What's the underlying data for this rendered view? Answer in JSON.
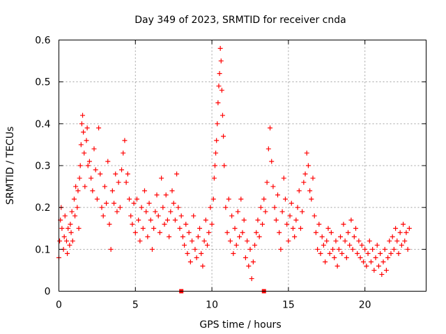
{
  "chart_data": {
    "type": "scatter",
    "title": "Day 349 of 2023, SRMTID for receiver cnda",
    "xlabel": "GPS time / hours",
    "ylabel": "SRMTID / TECUs",
    "xlim": [
      0,
      24
    ],
    "ylim": [
      0,
      0.6
    ],
    "xticks": [
      0,
      5,
      10,
      15,
      20
    ],
    "xtick_labels": [
      "0",
      "5",
      "10",
      "15",
      "20"
    ],
    "yticks": [
      0,
      0.1,
      0.2,
      0.3,
      0.4,
      0.5,
      0.6
    ],
    "ytick_labels": [
      "0",
      "0.1",
      "0.2",
      "0.3",
      "0.4",
      "0.5",
      "0.6"
    ],
    "grid": true,
    "marker": "plus",
    "color": "#ff0000",
    "axis_markers_x": [
      8.0,
      13.4
    ],
    "series": [
      {
        "name": "SRMTID",
        "x": [
          0.0,
          0.05,
          0.1,
          0.15,
          0.2,
          0.3,
          0.35,
          0.4,
          0.5,
          0.55,
          0.6,
          0.7,
          0.75,
          0.8,
          0.85,
          0.9,
          1.0,
          1.05,
          1.1,
          1.2,
          1.25,
          1.3,
          1.35,
          1.4,
          1.45,
          1.5,
          1.55,
          1.6,
          1.65,
          1.7,
          1.8,
          1.85,
          1.9,
          2.0,
          2.1,
          2.2,
          2.3,
          2.4,
          2.5,
          2.6,
          2.7,
          2.8,
          2.9,
          3.0,
          3.1,
          3.2,
          3.3,
          3.4,
          3.5,
          3.6,
          3.7,
          3.8,
          3.9,
          4.0,
          4.1,
          4.2,
          4.3,
          4.4,
          4.5,
          4.6,
          4.7,
          4.8,
          4.9,
          5.0,
          5.1,
          5.2,
          5.3,
          5.4,
          5.5,
          5.6,
          5.7,
          5.8,
          5.9,
          6.0,
          6.1,
          6.2,
          6.3,
          6.4,
          6.5,
          6.6,
          6.7,
          6.8,
          6.9,
          7.0,
          7.1,
          7.2,
          7.3,
          7.4,
          7.5,
          7.6,
          7.7,
          7.8,
          7.9,
          8.0,
          8.1,
          8.2,
          8.3,
          8.4,
          8.5,
          8.6,
          8.7,
          8.8,
          8.9,
          9.0,
          9.1,
          9.2,
          9.3,
          9.4,
          9.5,
          9.6,
          9.7,
          9.8,
          9.9,
          10.0,
          10.1,
          10.15,
          10.2,
          10.25,
          10.3,
          10.35,
          10.4,
          10.45,
          10.5,
          10.55,
          10.6,
          10.65,
          10.7,
          10.75,
          10.8,
          10.9,
          11.0,
          11.1,
          11.2,
          11.3,
          11.4,
          11.5,
          11.6,
          11.7,
          11.8,
          11.9,
          12.0,
          12.1,
          12.2,
          12.3,
          12.4,
          12.5,
          12.6,
          12.7,
          12.8,
          12.9,
          13.0,
          13.1,
          13.2,
          13.3,
          13.4,
          13.5,
          13.6,
          13.7,
          13.8,
          13.9,
          14.0,
          14.1,
          14.2,
          14.3,
          14.4,
          14.5,
          14.6,
          14.7,
          14.8,
          14.9,
          15.0,
          15.1,
          15.2,
          15.3,
          15.4,
          15.5,
          15.6,
          15.7,
          15.8,
          15.9,
          16.0,
          16.1,
          16.2,
          16.3,
          16.4,
          16.5,
          16.6,
          16.7,
          16.8,
          16.9,
          17.0,
          17.1,
          17.2,
          17.3,
          17.4,
          17.5,
          17.6,
          17.7,
          17.8,
          17.9,
          18.0,
          18.1,
          18.2,
          18.3,
          18.4,
          18.5,
          18.6,
          18.7,
          18.8,
          18.9,
          19.0,
          19.1,
          19.2,
          19.3,
          19.4,
          19.5,
          19.6,
          19.7,
          19.8,
          19.9,
          20.0,
          20.1,
          20.2,
          20.3,
          20.4,
          20.5,
          20.6,
          20.7,
          20.8,
          20.9,
          21.0,
          21.1,
          21.2,
          21.3,
          21.4,
          21.5,
          21.6,
          21.7,
          21.8,
          21.9,
          22.0,
          22.1,
          22.2,
          22.3,
          22.4,
          22.5,
          22.6,
          22.7,
          22.8,
          22.9
        ],
        "y": [
          0.08,
          0.12,
          0.17,
          0.2,
          0.15,
          0.1,
          0.13,
          0.18,
          0.12,
          0.09,
          0.15,
          0.11,
          0.16,
          0.14,
          0.19,
          0.12,
          0.22,
          0.18,
          0.25,
          0.2,
          0.24,
          0.15,
          0.27,
          0.3,
          0.35,
          0.4,
          0.42,
          0.38,
          0.33,
          0.25,
          0.36,
          0.39,
          0.3,
          0.31,
          0.27,
          0.24,
          0.34,
          0.29,
          0.22,
          0.39,
          0.28,
          0.2,
          0.18,
          0.25,
          0.21,
          0.31,
          0.16,
          0.1,
          0.24,
          0.21,
          0.28,
          0.19,
          0.26,
          0.2,
          0.29,
          0.33,
          0.36,
          0.26,
          0.28,
          0.22,
          0.18,
          0.16,
          0.21,
          0.14,
          0.22,
          0.17,
          0.12,
          0.2,
          0.15,
          0.24,
          0.19,
          0.13,
          0.21,
          0.17,
          0.1,
          0.15,
          0.19,
          0.23,
          0.18,
          0.14,
          0.27,
          0.2,
          0.16,
          0.23,
          0.17,
          0.13,
          0.19,
          0.24,
          0.21,
          0.17,
          0.28,
          0.2,
          0.15,
          0.18,
          0.13,
          0.11,
          0.16,
          0.09,
          0.14,
          0.07,
          0.12,
          0.18,
          0.1,
          0.08,
          0.13,
          0.15,
          0.09,
          0.06,
          0.12,
          0.17,
          0.11,
          0.14,
          0.2,
          0.16,
          0.22,
          0.27,
          0.3,
          0.33,
          0.36,
          0.4,
          0.45,
          0.49,
          0.52,
          0.58,
          0.55,
          0.48,
          0.42,
          0.37,
          0.3,
          0.2,
          0.14,
          0.22,
          0.12,
          0.18,
          0.09,
          0.15,
          0.11,
          0.19,
          0.13,
          0.22,
          0.14,
          0.17,
          0.08,
          0.12,
          0.06,
          0.1,
          0.03,
          0.07,
          0.11,
          0.14,
          0.17,
          0.13,
          0.2,
          0.16,
          0.22,
          0.19,
          0.26,
          0.34,
          0.39,
          0.31,
          0.25,
          0.2,
          0.17,
          0.23,
          0.14,
          0.1,
          0.19,
          0.27,
          0.22,
          0.16,
          0.12,
          0.18,
          0.21,
          0.15,
          0.13,
          0.17,
          0.2,
          0.24,
          0.15,
          0.19,
          0.26,
          0.28,
          0.33,
          0.3,
          0.24,
          0.22,
          0.27,
          0.18,
          0.14,
          0.1,
          0.16,
          0.09,
          0.13,
          0.11,
          0.07,
          0.12,
          0.15,
          0.09,
          0.14,
          0.1,
          0.08,
          0.12,
          0.06,
          0.1,
          0.13,
          0.09,
          0.16,
          0.12,
          0.08,
          0.14,
          0.11,
          0.17,
          0.1,
          0.13,
          0.15,
          0.09,
          0.12,
          0.08,
          0.11,
          0.07,
          0.1,
          0.06,
          0.09,
          0.12,
          0.07,
          0.1,
          0.05,
          0.08,
          0.11,
          0.06,
          0.09,
          0.04,
          0.07,
          0.1,
          0.05,
          0.08,
          0.12,
          0.09,
          0.13,
          0.1,
          0.15,
          0.12,
          0.09,
          0.14,
          0.11,
          0.16,
          0.12,
          0.14,
          0.1,
          0.15
        ]
      }
    ]
  }
}
